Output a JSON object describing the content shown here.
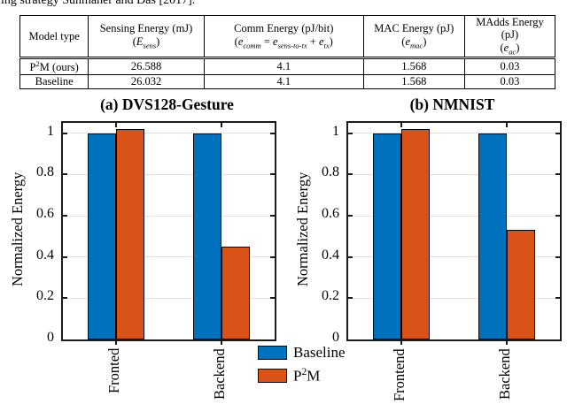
{
  "page": {
    "top_text": "ing strategy Sunmaher and Das [2017]."
  },
  "colors": {
    "baseline": "#0072BD",
    "p2m": "#D95319",
    "grid": "#e2e2e2",
    "axis": "#1a1a1a"
  },
  "table": {
    "headers": [
      {
        "line1": "Model type",
        "line2": []
      },
      {
        "line1": "Sensing Energy (mJ)",
        "line2": [
          {
            "t": "("
          },
          {
            "i": "E"
          },
          {
            "s": "sens"
          },
          {
            "t": ")"
          }
        ]
      },
      {
        "line1": "Comm Energy (pJ/bit)",
        "line2": [
          {
            "t": "("
          },
          {
            "i": "e"
          },
          {
            "s": "comm"
          },
          {
            "t": " = "
          },
          {
            "i": "e"
          },
          {
            "s": "sens-to-tx"
          },
          {
            "t": " + "
          },
          {
            "i": "e"
          },
          {
            "s": "tx"
          },
          {
            "t": ")"
          }
        ]
      },
      {
        "line1": "MAC Energy (pJ)",
        "line2": [
          {
            "t": "("
          },
          {
            "i": "e"
          },
          {
            "s": "mac"
          },
          {
            "t": ")"
          }
        ]
      },
      {
        "line1": "MAdds Energy (pJ)",
        "line2": [
          {
            "t": "("
          },
          {
            "i": "e"
          },
          {
            "s": "ac"
          },
          {
            "t": ")"
          }
        ]
      }
    ],
    "rows": [
      {
        "model": [
          {
            "t": "P"
          },
          {
            "p": "2"
          },
          {
            "t": "M (ours)"
          }
        ],
        "values": [
          "26.588",
          "4.1",
          "1.568",
          "0.03"
        ]
      },
      {
        "model": [
          {
            "t": "Baseline"
          }
        ],
        "values": [
          "26.032",
          "4.1",
          "1.568",
          "0.03"
        ]
      }
    ]
  },
  "chart_data": [
    {
      "type": "bar",
      "title": "(a) DVS128-Gesture",
      "ylabel": "Normalized Energy",
      "xlabel": "",
      "categories": [
        "Fronted",
        "Backend"
      ],
      "series": [
        {
          "name": "Baseline",
          "color": "#0072BD",
          "values": [
            1.0,
            1.0
          ]
        },
        {
          "name": "P2M",
          "color": "#D95319",
          "values": [
            1.02,
            0.45
          ]
        }
      ],
      "ylim": [
        0,
        1.05
      ],
      "yticks": [
        0,
        0.2,
        0.4,
        0.6,
        0.8,
        1
      ],
      "grid": true,
      "legend_position": "shared bottom-center"
    },
    {
      "type": "bar",
      "title": "(b) NMNIST",
      "ylabel": "Normalized Energy",
      "xlabel": "",
      "categories": [
        "Frontend",
        "Backend"
      ],
      "series": [
        {
          "name": "Baseline",
          "color": "#0072BD",
          "values": [
            1.0,
            1.0
          ]
        },
        {
          "name": "P2M",
          "color": "#D95319",
          "values": [
            1.02,
            0.53
          ]
        }
      ],
      "ylim": [
        0,
        1.05
      ],
      "yticks": [
        0,
        0.2,
        0.4,
        0.6,
        0.8,
        1
      ],
      "grid": true,
      "legend_position": "shared bottom-center"
    }
  ],
  "legend": {
    "items": [
      {
        "label": [
          {
            "t": "Baseline"
          }
        ],
        "color": "#0072BD"
      },
      {
        "label": [
          {
            "t": "P"
          },
          {
            "p": "2"
          },
          {
            "t": "M"
          }
        ],
        "color": "#D95319"
      }
    ]
  }
}
